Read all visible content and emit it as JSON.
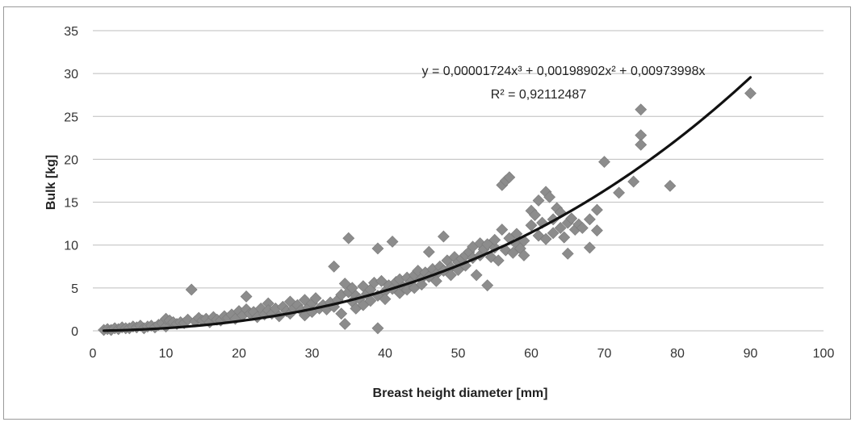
{
  "chart_data": {
    "type": "scatter",
    "xlabel": "Breast height diameter [mm]",
    "ylabel": "Bulk [kg]",
    "xlim": [
      0,
      100
    ],
    "ylim": [
      0,
      35
    ],
    "xticks": [
      "0",
      "10",
      "20",
      "30",
      "40",
      "50",
      "60",
      "70",
      "80",
      "90",
      "100"
    ],
    "yticks": [
      "0",
      "5",
      "10",
      "15",
      "20",
      "25",
      "30",
      "35"
    ],
    "grid": "horizontal",
    "legend": "none",
    "marker": "diamond",
    "marker_color": "#8c8c8c",
    "line_color": "#111111",
    "annotations": {
      "equation": "y = 0,00001724x³ + 0,00198902x² + 0,00973998x",
      "r_squared": "R² = 0,92112487"
    },
    "trendline": {
      "type": "polynomial",
      "order": 3,
      "coefficients": [
        1.724e-05,
        0.00198902,
        0.00973998,
        0
      ],
      "x_range": [
        1.5,
        90
      ]
    },
    "points": [
      [
        1.5,
        0.1
      ],
      [
        2,
        0.2
      ],
      [
        2.5,
        0.1
      ],
      [
        3,
        0.3
      ],
      [
        3.5,
        0.2
      ],
      [
        4,
        0.4
      ],
      [
        4.5,
        0.3
      ],
      [
        5,
        0.3
      ],
      [
        5.5,
        0.5
      ],
      [
        6,
        0.4
      ],
      [
        6.5,
        0.6
      ],
      [
        7,
        0.3
      ],
      [
        7.5,
        0.5
      ],
      [
        8,
        0.6
      ],
      [
        8.5,
        0.4
      ],
      [
        9,
        0.7
      ],
      [
        9.5,
        0.9
      ],
      [
        10,
        0.5
      ],
      [
        10,
        1.4
      ],
      [
        10.5,
        1.2
      ],
      [
        11,
        1.0
      ],
      [
        11.5,
        0.8
      ],
      [
        12,
        1.0
      ],
      [
        12.5,
        0.9
      ],
      [
        13,
        1.3
      ],
      [
        13.5,
        4.8
      ],
      [
        14,
        1.1
      ],
      [
        14.5,
        1.5
      ],
      [
        15,
        1.2
      ],
      [
        15.5,
        1.4
      ],
      [
        16,
        1.0
      ],
      [
        16.5,
        1.6
      ],
      [
        17,
        1.3
      ],
      [
        17.5,
        1.2
      ],
      [
        18,
        1.7
      ],
      [
        18.5,
        1.5
      ],
      [
        19,
        1.9
      ],
      [
        19.5,
        1.4
      ],
      [
        20,
        2.3
      ],
      [
        20.5,
        1.8
      ],
      [
        21,
        4.0
      ],
      [
        21,
        2.5
      ],
      [
        21.5,
        2.0
      ],
      [
        22,
        2.2
      ],
      [
        22.5,
        1.6
      ],
      [
        23,
        2.6
      ],
      [
        23.5,
        1.9
      ],
      [
        24,
        3.2
      ],
      [
        24,
        2.4
      ],
      [
        24.5,
        2.0
      ],
      [
        25,
        2.6
      ],
      [
        25.5,
        1.7
      ],
      [
        26,
        2.8
      ],
      [
        26.5,
        2.3
      ],
      [
        27,
        3.4
      ],
      [
        27,
        2.0
      ],
      [
        27.5,
        2.6
      ],
      [
        28,
        3.0
      ],
      [
        28.5,
        2.4
      ],
      [
        29,
        3.6
      ],
      [
        29,
        1.8
      ],
      [
        29.5,
        2.7
      ],
      [
        30,
        3.2
      ],
      [
        30,
        2.2
      ],
      [
        30.5,
        3.8
      ],
      [
        31,
        2.6
      ],
      [
        31.5,
        3.0
      ],
      [
        32,
        2.5
      ],
      [
        32.5,
        3.3
      ],
      [
        33,
        7.5
      ],
      [
        33,
        2.8
      ],
      [
        33.5,
        3.6
      ],
      [
        34,
        4.2
      ],
      [
        34,
        2.0
      ],
      [
        34.5,
        0.8
      ],
      [
        34.5,
        5.5
      ],
      [
        35,
        10.8
      ],
      [
        35,
        4.5
      ],
      [
        35.5,
        3.4
      ],
      [
        35.5,
        5.0
      ],
      [
        36,
        4.1
      ],
      [
        36,
        2.6
      ],
      [
        36.5,
        3.7
      ],
      [
        37,
        5.2
      ],
      [
        37,
        3.0
      ],
      [
        37.5,
        4.3
      ],
      [
        38,
        4.8
      ],
      [
        38,
        3.5
      ],
      [
        38.5,
        5.6
      ],
      [
        39,
        9.6
      ],
      [
        39,
        0.3
      ],
      [
        39,
        4.1
      ],
      [
        39.5,
        5.8
      ],
      [
        40,
        4.6
      ],
      [
        40,
        3.7
      ],
      [
        40.5,
        5.3
      ],
      [
        41,
        10.4
      ],
      [
        41,
        4.9
      ],
      [
        41.5,
        5.7
      ],
      [
        42,
        6.0
      ],
      [
        42,
        4.4
      ],
      [
        42.5,
        5.1
      ],
      [
        43,
        6.2
      ],
      [
        43,
        4.8
      ],
      [
        43.5,
        5.7
      ],
      [
        44,
        6.5
      ],
      [
        44,
        5.0
      ],
      [
        44.5,
        7.0
      ],
      [
        45,
        6.1
      ],
      [
        45,
        5.4
      ],
      [
        45.5,
        6.8
      ],
      [
        46,
        9.2
      ],
      [
        46,
        6.3
      ],
      [
        46.5,
        7.2
      ],
      [
        47,
        6.6
      ],
      [
        47,
        5.8
      ],
      [
        47.5,
        7.5
      ],
      [
        48,
        11.0
      ],
      [
        48,
        7.0
      ],
      [
        48.5,
        8.2
      ],
      [
        49,
        7.4
      ],
      [
        49,
        6.5
      ],
      [
        49.5,
        8.6
      ],
      [
        50,
        8.0
      ],
      [
        50,
        7.1
      ],
      [
        50.5,
        8.4
      ],
      [
        51,
        8.8
      ],
      [
        51,
        7.6
      ],
      [
        51.5,
        9.2
      ],
      [
        52,
        8.5
      ],
      [
        52,
        9.8
      ],
      [
        52.5,
        6.5
      ],
      [
        53,
        10.2
      ],
      [
        53,
        8.8
      ],
      [
        53.5,
        9.5
      ],
      [
        54,
        5.3
      ],
      [
        54,
        10.1
      ],
      [
        54.5,
        8.6
      ],
      [
        55,
        9.7
      ],
      [
        55,
        10.6
      ],
      [
        55.5,
        8.2
      ],
      [
        56,
        17.0
      ],
      [
        56,
        11.8
      ],
      [
        56.5,
        9.4
      ],
      [
        56.5,
        17.5
      ],
      [
        57,
        10.8
      ],
      [
        57,
        17.9
      ],
      [
        57.5,
        9.1
      ],
      [
        58,
        11.3
      ],
      [
        58,
        10.1
      ],
      [
        58.5,
        9.6
      ],
      [
        59,
        10.5
      ],
      [
        59,
        8.8
      ],
      [
        60,
        14.0
      ],
      [
        60,
        12.3
      ],
      [
        60.5,
        13.5
      ],
      [
        61,
        15.2
      ],
      [
        61,
        11.1
      ],
      [
        61.5,
        12.6
      ],
      [
        62,
        16.2
      ],
      [
        62,
        10.7
      ],
      [
        62.5,
        15.6
      ],
      [
        63,
        13.0
      ],
      [
        63,
        11.4
      ],
      [
        63.5,
        14.3
      ],
      [
        64,
        12.0
      ],
      [
        64,
        13.8
      ],
      [
        64.5,
        10.9
      ],
      [
        65,
        9.0
      ],
      [
        65,
        12.6
      ],
      [
        65.5,
        13.1
      ],
      [
        66,
        11.8
      ],
      [
        66.5,
        12.4
      ],
      [
        67,
        12.0
      ],
      [
        68,
        9.7
      ],
      [
        68,
        13.0
      ],
      [
        69,
        11.7
      ],
      [
        69,
        14.1
      ],
      [
        70,
        19.7
      ],
      [
        72,
        16.1
      ],
      [
        74,
        17.4
      ],
      [
        75,
        25.8
      ],
      [
        75,
        22.8
      ],
      [
        75,
        21.7
      ],
      [
        79,
        16.9
      ],
      [
        90,
        27.7
      ]
    ]
  }
}
